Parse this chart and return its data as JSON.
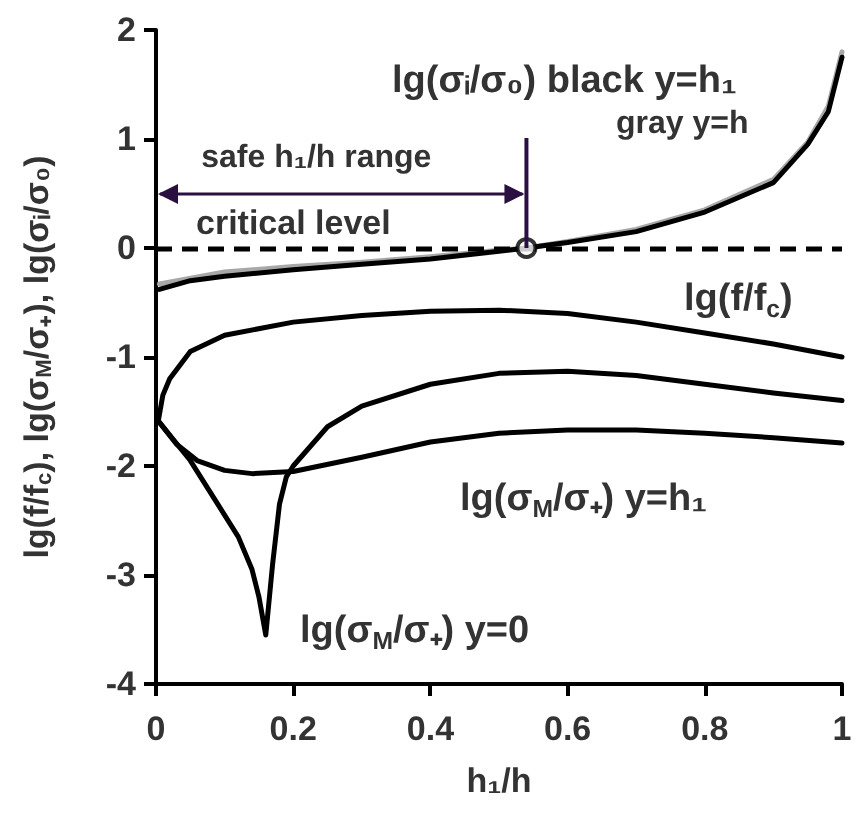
{
  "chart_data": {
    "type": "line",
    "xlabel": "h₁/h",
    "ylabel": "lg(f/f$_{c}$), lg(σ$_{M}$/σ₊), lg(σᵢ/σ₀)",
    "xlim": [
      0,
      1
    ],
    "xticks": [
      0,
      0.2,
      0.4,
      0.6,
      0.8,
      1
    ],
    "ylim": [
      -4,
      2
    ],
    "yticks": [
      -4,
      -3,
      -2,
      -1,
      0,
      1,
      2
    ],
    "grid": false,
    "legend": false,
    "marker": "none",
    "line_style": "solid",
    "series": [
      {
        "name": "gray y=h",
        "color": "#a8a8a8",
        "x": [
          0.005,
          0.1,
          0.2,
          0.3,
          0.4,
          0.5,
          0.54,
          0.6,
          0.7,
          0.8,
          0.9,
          0.95,
          0.98,
          1.0
        ],
        "values": [
          -0.33,
          -0.22,
          -0.17,
          -0.13,
          -0.08,
          -0.02,
          0,
          0.06,
          0.17,
          0.35,
          0.63,
          0.97,
          1.3,
          1.8
        ]
      },
      {
        "name": "lg(σᵢ/σ₀) black y=h₁",
        "color": "#000000",
        "x": [
          0.005,
          0.05,
          0.1,
          0.2,
          0.3,
          0.4,
          0.5,
          0.54,
          0.6,
          0.7,
          0.8,
          0.9,
          0.95,
          0.98,
          1.0
        ],
        "values": [
          -0.38,
          -0.3,
          -0.26,
          -0.2,
          -0.15,
          -0.1,
          -0.03,
          0,
          0.05,
          0.15,
          0.33,
          0.6,
          0.95,
          1.25,
          1.75
        ]
      },
      {
        "name": "lg(f/f$_{c}$)",
        "color": "#000000",
        "x": [
          0.003,
          0.01,
          0.02,
          0.05,
          0.1,
          0.2,
          0.3,
          0.4,
          0.5,
          0.6,
          0.7,
          0.8,
          0.9,
          1.0
        ],
        "values": [
          -1.6,
          -1.35,
          -1.2,
          -0.95,
          -0.8,
          -0.68,
          -0.62,
          -0.58,
          -0.57,
          -0.6,
          -0.68,
          -0.78,
          -0.88,
          -1.0
        ]
      },
      {
        "name": "lg(σ$_{M}$/σ₊) y=h₁",
        "color": "#000000",
        "x": [
          0.005,
          0.03,
          0.06,
          0.1,
          0.14,
          0.2,
          0.3,
          0.4,
          0.5,
          0.6,
          0.7,
          0.8,
          0.9,
          1.0
        ],
        "values": [
          -1.6,
          -1.8,
          -1.95,
          -2.04,
          -2.07,
          -2.05,
          -1.92,
          -1.78,
          -1.7,
          -1.67,
          -1.67,
          -1.7,
          -1.74,
          -1.79
        ]
      },
      {
        "name": "lg(σ$_{M}$/σ₊) y=0",
        "color": "#000000",
        "x": [
          0.005,
          0.05,
          0.09,
          0.12,
          0.14,
          0.15,
          0.16,
          0.17,
          0.18,
          0.19,
          0.2,
          0.25,
          0.3,
          0.4,
          0.5,
          0.6,
          0.7,
          0.8,
          0.9,
          1.0
        ],
        "values": [
          -1.6,
          -1.95,
          -2.35,
          -2.65,
          -2.95,
          -3.2,
          -3.55,
          -2.9,
          -2.35,
          -2.1,
          -2.0,
          -1.64,
          -1.45,
          -1.25,
          -1.15,
          -1.13,
          -1.17,
          -1.25,
          -1.33,
          -1.4
        ]
      },
      {
        "type": "scatter",
        "color": "#000000",
        "x": [
          0.54
        ],
        "values": [
          0
        ],
        "marker": "circle"
      }
    ],
    "ref_lines": [
      {
        "axis": "y",
        "value": 0,
        "label": "critical level",
        "color": "#000000",
        "line_style": "dashed"
      }
    ],
    "annotations": [
      "safe h₁/h range"
    ]
  }
}
